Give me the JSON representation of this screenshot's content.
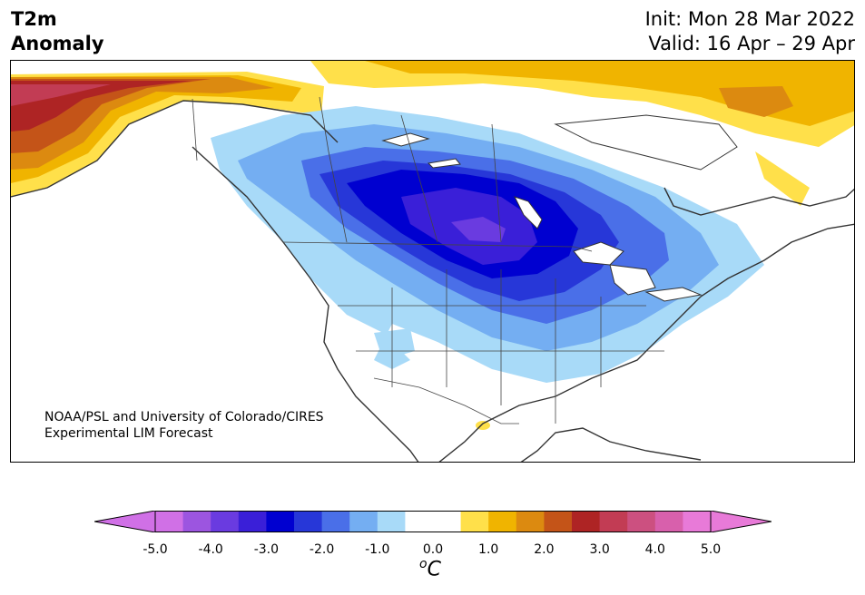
{
  "header": {
    "title_line1": "T2m",
    "title_line2": "Anomaly",
    "init": "Init: Mon 28 Mar 2022",
    "valid": "Valid: 16 Apr – 29 Apr"
  },
  "credit": {
    "line1": "NOAA/PSL and University of Colorado/CIRES",
    "line2": "Experimental LIM Forecast"
  },
  "colorbar": {
    "unit_super": "o",
    "unit_main": "C",
    "ticks": [
      "-5.0",
      "-4.0",
      "-3.0",
      "-2.0",
      "-1.0",
      "0.0",
      "1.0",
      "2.0",
      "3.0",
      "4.0",
      "5.0"
    ],
    "colors": [
      "#d070e6",
      "#9c55e0",
      "#6a3be0",
      "#3a1fd8",
      "#0000d0",
      "#2737d8",
      "#4a6fe8",
      "#74aef2",
      "#a8daf8",
      "#ffffff",
      "#ffffff",
      "#ffe04a",
      "#f0b400",
      "#dc8a10",
      "#c45418",
      "#ae2424",
      "#c23c54",
      "#cc5080",
      "#d860ac",
      "#e87ad8"
    ],
    "under_color": "#d070e6",
    "over_color": "#e87ad8"
  },
  "map": {
    "region": "North America",
    "projection": "Lambert conformal",
    "variable": "2-m temperature anomaly"
  }
}
